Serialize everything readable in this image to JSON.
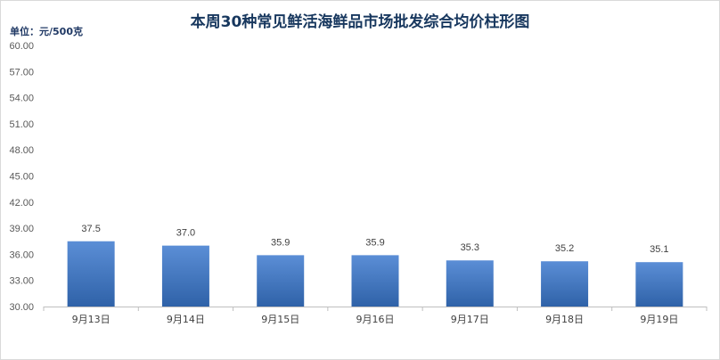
{
  "chart_data": {
    "type": "bar",
    "title": "本周30种常见鲜活海鲜品市场批发综合均价柱形图",
    "unit_label": "单位：元/500克",
    "categories": [
      "9月13日",
      "9月14日",
      "9月15日",
      "9月16日",
      "9月17日",
      "9月18日",
      "9月19日"
    ],
    "values": [
      37.5,
      37.0,
      35.9,
      35.9,
      35.3,
      35.2,
      35.1
    ],
    "data_labels": [
      "37.5",
      "37.0",
      "35.9",
      "35.9",
      "35.3",
      "35.2",
      "35.1"
    ],
    "y_ticks": [
      "30.00",
      "33.00",
      "36.00",
      "39.00",
      "42.00",
      "45.00",
      "48.00",
      "51.00",
      "54.00",
      "57.00",
      "60.00"
    ],
    "ylim": [
      30,
      60
    ],
    "grid": false,
    "legend": "none",
    "colors": {
      "bar_top": "#5b8ed6",
      "bar_bottom": "#2f62a8",
      "title": "#17375e",
      "axis": "#bfbfbf"
    }
  }
}
